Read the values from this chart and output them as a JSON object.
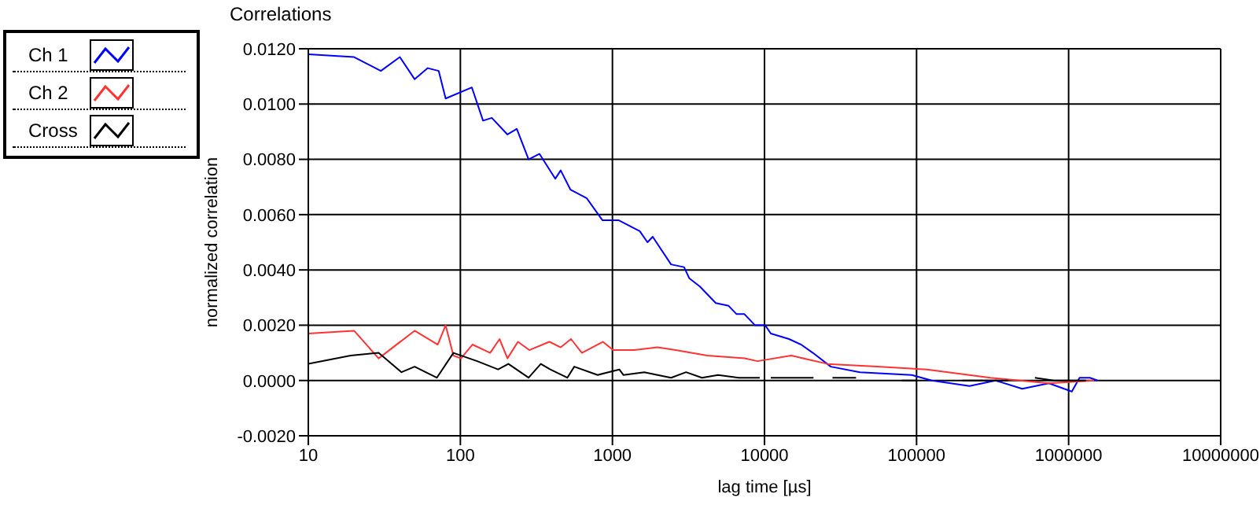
{
  "chart_data": {
    "type": "line",
    "title": "Correlations",
    "xlabel": "lag time [µs]",
    "ylabel": "normalized correlation",
    "log": "x",
    "grid": true,
    "legend": "top left",
    "marker": "none",
    "line_style": "solid",
    "xlim": [
      10,
      10000000
    ],
    "xticks": [
      10,
      100,
      1000,
      10000,
      100000,
      1000000,
      10000000
    ],
    "ylim": [
      -0.002,
      0.012
    ],
    "yticks": [
      {
        "value": -0.002,
        "label": "-0.0020"
      },
      {
        "value": 0,
        "label": "0.0000"
      },
      {
        "value": 0.002,
        "label": "0.0020"
      },
      {
        "value": 0.004,
        "label": "0.0040"
      },
      {
        "value": 0.006,
        "label": "0.0060"
      },
      {
        "value": 0.008,
        "label": "0.0080"
      },
      {
        "value": 0.01,
        "label": "0.0100"
      },
      {
        "value": 0.012,
        "label": "0.0120"
      }
    ],
    "series": [
      {
        "name": "Ch 1",
        "color": "#0000ff",
        "x": [
          10,
          20,
          30,
          40,
          50,
          61,
          72,
          80,
          119,
          141,
          161,
          204,
          235,
          281,
          331,
          421,
          457,
          530,
          676,
          859,
          1096,
          1513,
          1700,
          1840,
          2430,
          2960,
          3200,
          3760,
          4780,
          5810,
          6550,
          7380,
          8650,
          10100,
          11000,
          14500,
          17400,
          20800,
          27300,
          42400,
          93000,
          126000,
          223000,
          331000,
          495000,
          742000,
          1050000,
          1180000,
          1380000,
          1550000
        ],
        "values": [
          0.0118,
          0.0117,
          0.0112,
          0.0117,
          0.0109,
          0.0113,
          0.0112,
          0.0102,
          0.0106,
          0.0094,
          0.0095,
          0.0089,
          0.0091,
          0.008,
          0.0082,
          0.0073,
          0.0076,
          0.0069,
          0.0066,
          0.0058,
          0.0058,
          0.0054,
          0.005,
          0.0052,
          0.0042,
          0.0041,
          0.0037,
          0.0034,
          0.0028,
          0.0027,
          0.0024,
          0.0024,
          0.002,
          0.002,
          0.0017,
          0.0015,
          0.0013,
          0.001,
          0.0005,
          0.0003,
          0.0002,
          0,
          -0.0002,
          0,
          -0.0003,
          -0.0001,
          -0.0004,
          0.0001,
          0.0001,
          0
        ]
      },
      {
        "name": "Ch 2",
        "color": "#ff3333",
        "x": [
          10,
          20,
          29,
          50,
          71,
          80,
          90,
          101,
          120,
          157,
          181,
          204,
          239,
          284,
          385,
          457,
          534,
          630,
          865,
          1010,
          1390,
          1980,
          2600,
          4200,
          7400,
          9000,
          15000,
          26000,
          58000,
          117000,
          306000,
          742000,
          1470000
        ],
        "values": [
          0.0017,
          0.0018,
          0.0008,
          0.0018,
          0.0013,
          0.002,
          0.0009,
          0.0008,
          0.0013,
          0.001,
          0.0015,
          0.0008,
          0.0014,
          0.0011,
          0.0014,
          0.0012,
          0.0015,
          0.001,
          0.0014,
          0.0011,
          0.0011,
          0.0012,
          0.0011,
          0.0009,
          0.0008,
          0.0007,
          0.0009,
          0.0006,
          0.0005,
          0.0004,
          0.0001,
          -0.0001,
          0
        ]
      },
      {
        "name": "Cross",
        "color": "#000000",
        "x": [
          10,
          19,
          29,
          41,
          50,
          70,
          90,
          129,
          177,
          207,
          281,
          338,
          390,
          505,
          561,
          800,
          1110,
          1180,
          1620,
          2430,
          3050,
          3880,
          4950,
          6790,
          9300,
          10000,
          11000,
          14000,
          21000,
          23000,
          28000,
          40000,
          55000,
          80000,
          100000,
          130000,
          200000,
          400000,
          450000,
          600000,
          800000,
          1300000
        ],
        "values": [
          0.0006,
          0.0009,
          0.001,
          0.0003,
          0.0005,
          0.0001,
          0.001,
          0.0007,
          0.0004,
          0.0006,
          0.0001,
          0.0006,
          0.0004,
          0.0001,
          0.0005,
          0.0002,
          0.0004,
          0.0002,
          0.0003,
          0.0001,
          0.0003,
          0.0001,
          0.0002,
          0.0001,
          0.0001,
          null,
          0.0001,
          0.0001,
          0.0001,
          null,
          0.0001,
          0.0001,
          null,
          0,
          0,
          null,
          0,
          0,
          null,
          0.0001,
          0,
          0
        ]
      }
    ]
  }
}
